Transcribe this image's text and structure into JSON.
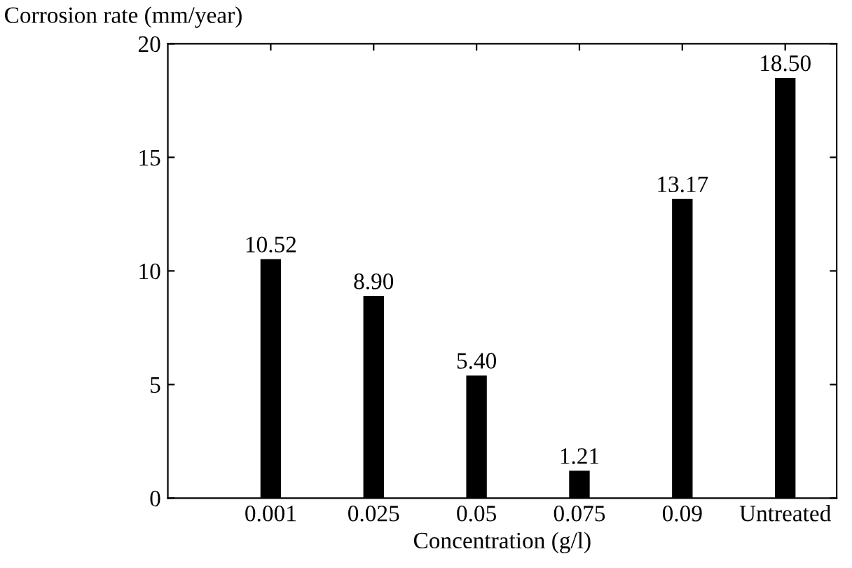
{
  "chart_data": {
    "type": "bar",
    "xlabel": "Concentration (g/l)",
    "ylabel": "Corrosion rate (mm/year)",
    "categories": [
      "0.001",
      "0.025",
      "0.05",
      "0.075",
      "0.09",
      "Untreated"
    ],
    "values": [
      10.52,
      8.9,
      5.4,
      1.21,
      13.17,
      18.5
    ],
    "value_labels": [
      "10.52",
      "8.90",
      "5.40",
      "1.21",
      "13.17",
      "18.50"
    ],
    "color": "#000000",
    "ylim": [
      0,
      20
    ],
    "yticks": [
      0,
      5,
      10,
      15,
      20
    ],
    "grid": false,
    "legend": false
  }
}
